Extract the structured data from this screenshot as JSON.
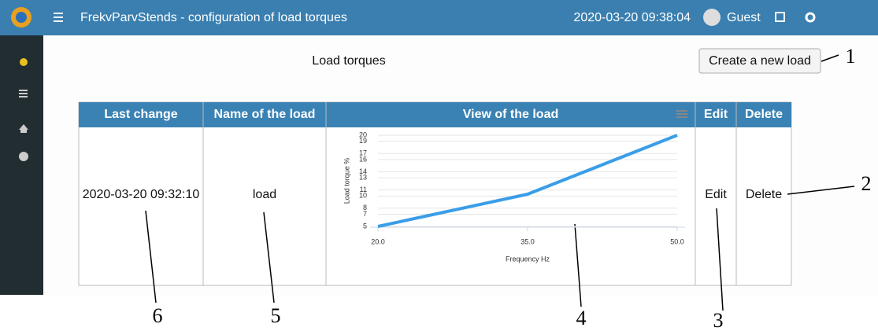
{
  "header": {
    "title": "FrekvParvStends - configuration of load torques",
    "datetime": "2020-03-20 09:38:04",
    "user": "Guest"
  },
  "page": {
    "title": "Load torques",
    "button": "Create a new load"
  },
  "table": {
    "headers": [
      "Last change",
      "Name of the load",
      "View of the load",
      "Edit",
      "Delete"
    ],
    "rows": [
      [
        "2020-03-20 09:32:10",
        "load",
        "Edit",
        "Delete"
      ]
    ]
  },
  "chart_data": {
    "type": "line",
    "x": [
      20,
      35,
      50
    ],
    "values": [
      5,
      10.3,
      20
    ],
    "color": "#3a9de8",
    "xlim": [
      20,
      50
    ],
    "xticks": [
      {
        "value": 20,
        "label": "20.0"
      },
      {
        "value": 35,
        "label": "35.0"
      },
      {
        "value": 50,
        "label": "50.0"
      }
    ],
    "ylim": [
      5,
      20
    ],
    "yticks": [
      5,
      7,
      8,
      10,
      11,
      13,
      14,
      16,
      17,
      19,
      20
    ],
    "xlabel": "Frequency Hz",
    "ylabel": "Load torque %",
    "grid": true
  },
  "annotations": [
    "1",
    "2",
    "3",
    "4",
    "5",
    "6"
  ]
}
